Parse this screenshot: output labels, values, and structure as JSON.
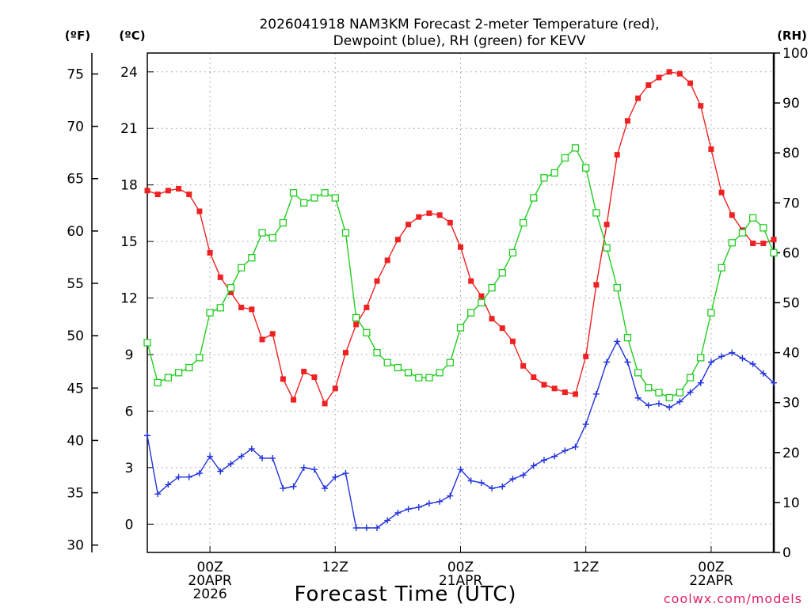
{
  "chart_data": {
    "type": "line",
    "title_line1": "2026041918 NAM3KM Forecast 2-meter Temperature (red),",
    "title_line2": "Dewpoint (blue), RH (green) for KEVV",
    "xlabel": "Forecast Time (UTC)",
    "credit": "coolwx.com/models",
    "units": {
      "fahrenheit": "(ºF)",
      "celsius": "(ºC)",
      "rh": "(RH)"
    },
    "x_range_hours": [
      18,
      78
    ],
    "celsius_range": [
      -1.5,
      25.0
    ],
    "rh_range": [
      0,
      100
    ],
    "celsius_ticks": [
      "0",
      "3",
      "6",
      "9",
      "12",
      "15",
      "18",
      "21",
      "24"
    ],
    "fahrenheit_ticks": [
      "30",
      "35",
      "40",
      "45",
      "50",
      "55",
      "60",
      "65",
      "70",
      "75"
    ],
    "rh_ticks": [
      "0",
      "10",
      "20",
      "30",
      "40",
      "50",
      "60",
      "70",
      "80",
      "90",
      "100"
    ],
    "x_ticks": [
      {
        "hour": 24,
        "lines": [
          "00Z",
          "20APR",
          "2026"
        ]
      },
      {
        "hour": 36,
        "lines": [
          "12Z"
        ]
      },
      {
        "hour": 48,
        "lines": [
          "00Z",
          "21APR"
        ]
      },
      {
        "hour": 60,
        "lines": [
          "12Z"
        ]
      },
      {
        "hour": 72,
        "lines": [
          "00Z",
          "22APR"
        ]
      }
    ],
    "x_hours": [
      18,
      19,
      20,
      21,
      22,
      23,
      24,
      25,
      26,
      27,
      28,
      29,
      30,
      31,
      32,
      33,
      34,
      35,
      36,
      37,
      38,
      39,
      40,
      41,
      42,
      43,
      44,
      45,
      46,
      47,
      48,
      49,
      50,
      51,
      52,
      53,
      54,
      55,
      56,
      57,
      58,
      59,
      60,
      61,
      62,
      63,
      64,
      65,
      66,
      67,
      68,
      69,
      70,
      71,
      72,
      73,
      74,
      75,
      76,
      77,
      78
    ],
    "series": [
      {
        "name": "2-meter Temperature",
        "axis": "celsius",
        "color": "#ee2222",
        "marker": "filled-square",
        "values": [
          17.7,
          17.5,
          17.7,
          17.8,
          17.5,
          16.6,
          14.4,
          13.1,
          12.3,
          11.5,
          11.4,
          9.8,
          10.1,
          7.7,
          6.6,
          8.1,
          7.8,
          6.4,
          7.2,
          9.1,
          10.6,
          11.5,
          12.9,
          14.0,
          15.1,
          15.9,
          16.3,
          16.5,
          16.4,
          16.0,
          14.7,
          12.9,
          12.1,
          10.9,
          10.4,
          9.7,
          8.4,
          7.8,
          7.4,
          7.2,
          7.0,
          6.9,
          8.9,
          12.7,
          15.9,
          19.6,
          21.4,
          22.6,
          23.3,
          23.7,
          24.0,
          23.9,
          23.4,
          22.2,
          19.9,
          17.6,
          16.4,
          15.6,
          14.9,
          14.9,
          15.1
        ]
      },
      {
        "name": "Dewpoint",
        "axis": "celsius",
        "color": "#2233dd",
        "marker": "plus",
        "values": [
          4.7,
          1.6,
          2.1,
          2.5,
          2.5,
          2.7,
          3.6,
          2.8,
          3.2,
          3.6,
          4.0,
          3.5,
          3.5,
          1.9,
          2.0,
          3.0,
          2.9,
          1.9,
          2.5,
          2.7,
          -0.2,
          -0.2,
          -0.2,
          0.2,
          0.6,
          0.8,
          0.9,
          1.1,
          1.2,
          1.5,
          2.9,
          2.3,
          2.2,
          1.9,
          2.0,
          2.4,
          2.6,
          3.1,
          3.4,
          3.6,
          3.9,
          4.1,
          5.3,
          6.9,
          8.6,
          9.7,
          8.6,
          6.7,
          6.3,
          6.4,
          6.2,
          6.5,
          7.0,
          7.5,
          8.6,
          8.9,
          9.1,
          8.8,
          8.5,
          8.0,
          7.5
        ]
      },
      {
        "name": "RH",
        "axis": "rh",
        "color": "#22cc22",
        "marker": "open-square",
        "values": [
          42,
          34,
          35,
          36,
          37,
          39,
          48,
          49,
          53,
          57,
          59,
          64,
          63,
          66,
          72,
          70,
          71,
          72,
          71,
          64,
          47,
          44,
          40,
          38,
          37,
          36,
          35,
          35,
          36,
          38,
          45,
          48,
          50,
          53,
          56,
          60,
          66,
          71,
          75,
          76,
          79,
          81,
          77,
          68,
          61,
          53,
          43,
          36,
          33,
          32,
          31,
          32,
          35,
          39,
          48,
          57,
          62,
          64,
          67,
          65,
          60
        ]
      }
    ]
  }
}
